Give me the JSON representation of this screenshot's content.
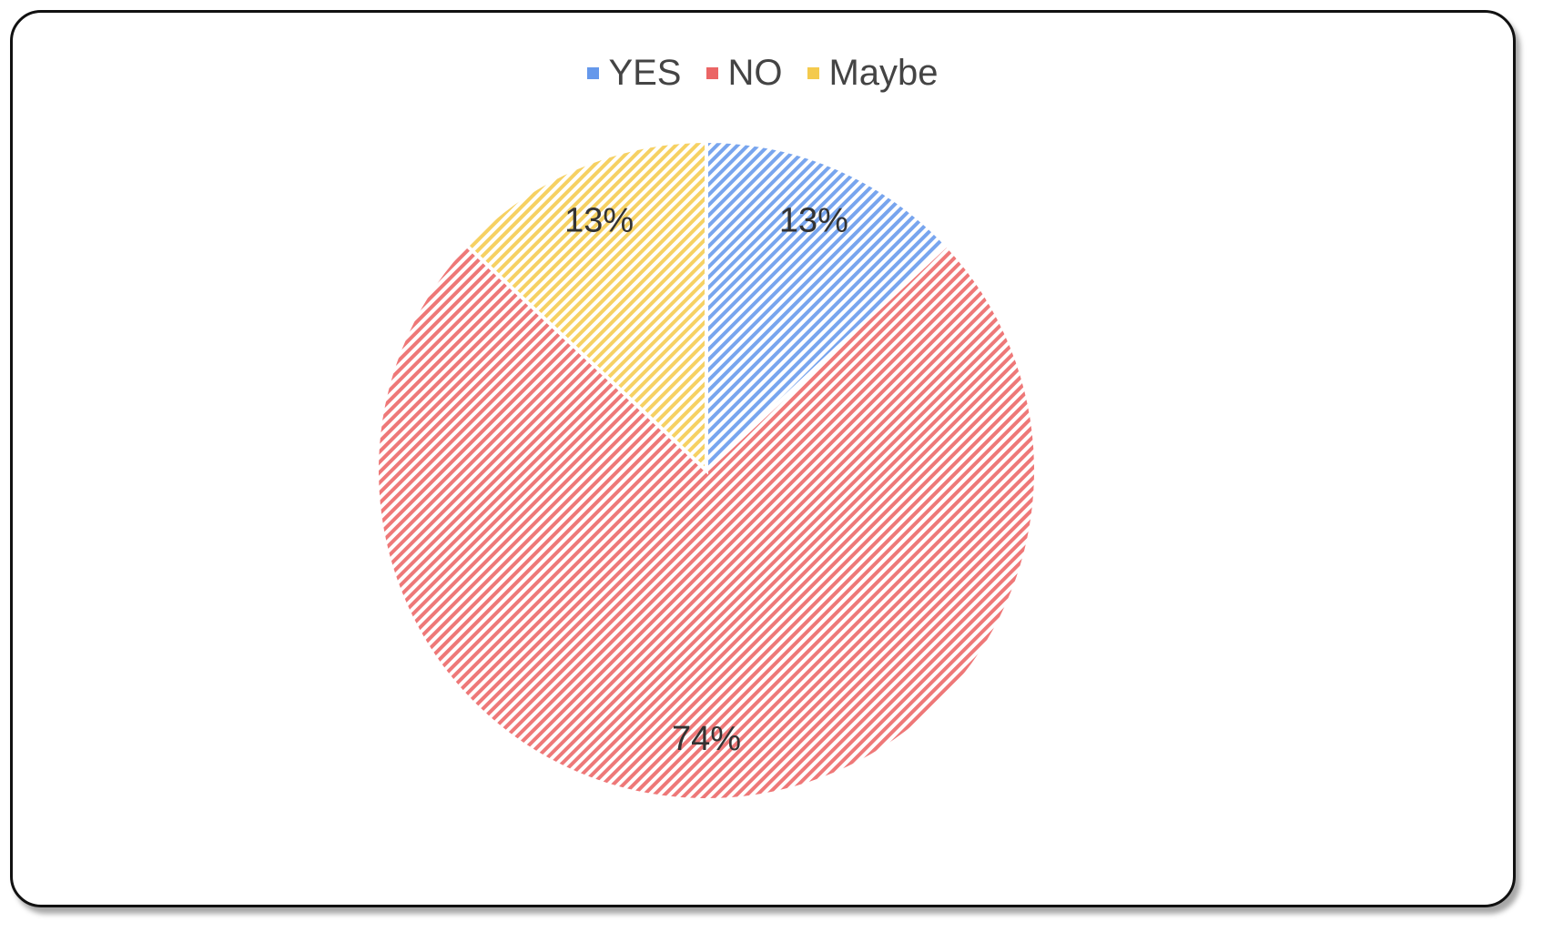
{
  "chart_data": {
    "type": "pie",
    "title": "",
    "legend_position": "top",
    "categories": [
      "YES",
      "NO",
      "Maybe"
    ],
    "values": [
      13,
      74,
      13
    ],
    "labels": [
      "13%",
      "74%",
      "13%"
    ],
    "colors": [
      "#4a86e8",
      "#e84a4a",
      "#f2c12e"
    ],
    "start_angle_deg": 0,
    "direction": "clockwise",
    "fill_pattern": "diagonal-hatch"
  }
}
